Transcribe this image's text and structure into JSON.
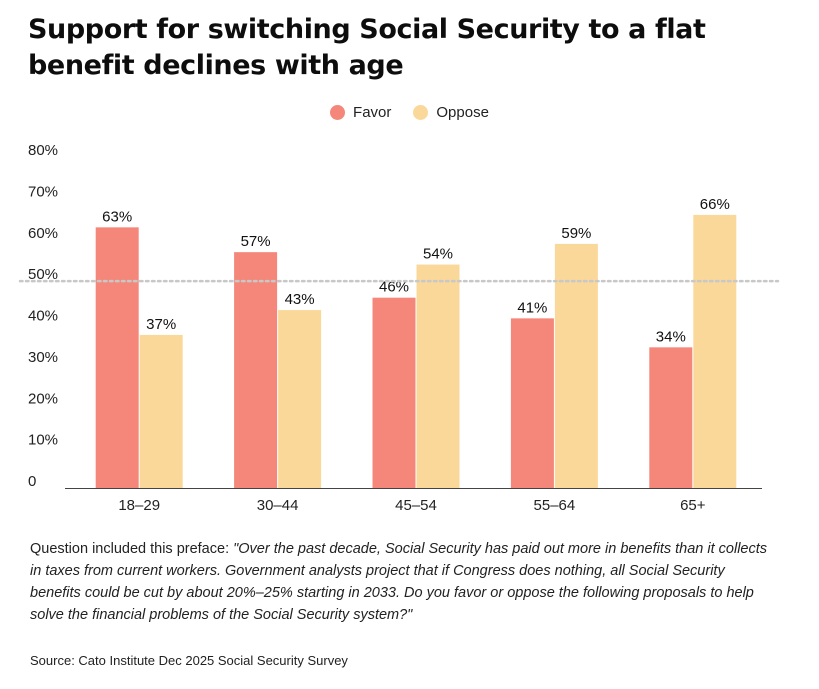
{
  "title": "Support for switching Social Security to a flat benefit declines with age",
  "note": {
    "lead": "Question included this preface: ",
    "quote": "\"Over the past decade, Social Security has paid out more in benefits than it collects in taxes from current workers. Government analysts project that if Congress does nothing, all Social Security benefits could be cut by about 20%–25% starting in 2033. Do you favor or oppose the following proposals to help solve the financial problems of the Social Security system?\""
  },
  "source": "Source: Cato Institute Dec 2025 Social Security Survey",
  "colors": {
    "favor": "#f4877a",
    "oppose": "#fad89a",
    "reference": "#c8c8c8",
    "axis": "#444444"
  },
  "chart_data": {
    "type": "bar",
    "title": "Support for switching Social Security to a flat benefit declines with age",
    "xlabel": "",
    "ylabel": "",
    "categories": [
      "18–29",
      "30–44",
      "45–54",
      "55–64",
      "65+"
    ],
    "series": [
      {
        "name": "Favor",
        "values": [
          63,
          57,
          46,
          41,
          34
        ]
      },
      {
        "name": "Oppose",
        "values": [
          37,
          43,
          54,
          59,
          66
        ]
      }
    ],
    "data_labels": [
      [
        "63%",
        "57%",
        "46%",
        "41%",
        "34%"
      ],
      [
        "37%",
        "43%",
        "54%",
        "59%",
        "66%"
      ]
    ],
    "ylim": [
      0,
      80
    ],
    "yticks": [
      0,
      10,
      20,
      30,
      40,
      50,
      60,
      70,
      80
    ],
    "ytick_labels": [
      "0",
      "10%",
      "20%",
      "30%",
      "40%",
      "50%",
      "60%",
      "70%",
      "80%"
    ],
    "reference_line": 50,
    "grid": false,
    "legend_position": "top-center"
  }
}
